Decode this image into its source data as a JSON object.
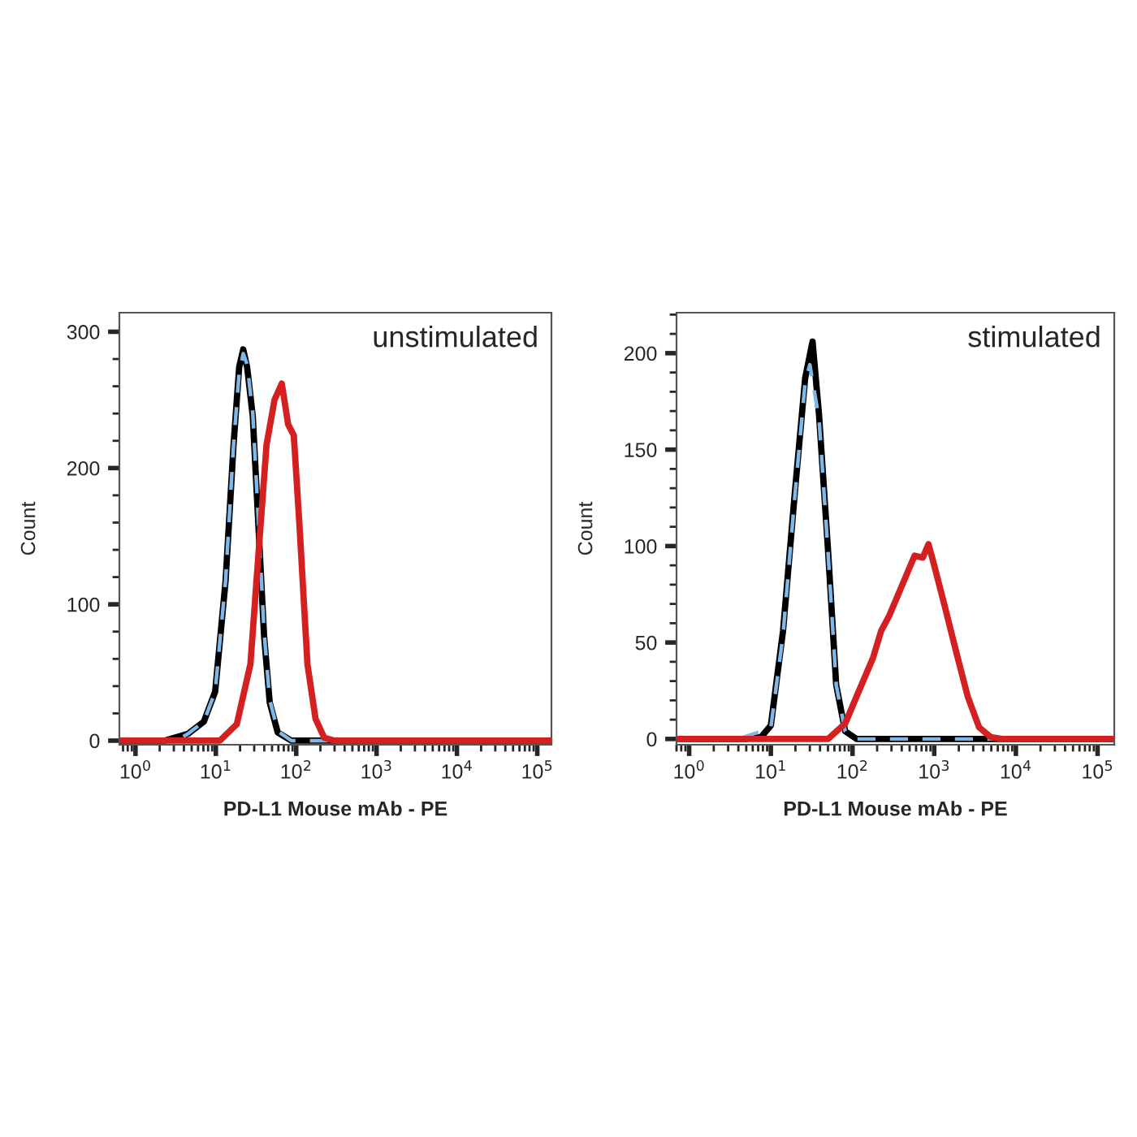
{
  "chart_data": [
    {
      "type": "line",
      "xlabel": "PD-L1 Mouse mAb - PE",
      "ylabel": "Count",
      "annotations": [
        "unstimulated"
      ],
      "log": "x",
      "grid": false,
      "legend": false,
      "xlim": [
        0.63,
        150000
      ],
      "xticks": [
        {
          "value": 1,
          "label": "10$^{0}$"
        },
        {
          "value": 10,
          "label": "10$^{1}$"
        },
        {
          "value": 100,
          "label": "10$^{2}$"
        },
        {
          "value": 1000,
          "label": "10$^{3}$"
        },
        {
          "value": 10000,
          "label": "10$^{4}$"
        },
        {
          "value": 100000,
          "label": "10$^{5}$"
        }
      ],
      "ylim": [
        -3,
        314
      ],
      "yticks": [
        0,
        100,
        200,
        300
      ],
      "series": [
        {
          "color": "#000000",
          "line_style": "solid",
          "x": [
            0.63,
            2.3,
            4.5,
            7.1,
            9.8,
            13.2,
            16.6,
            19.5,
            21.9,
            24.5,
            28.8,
            33.9,
            39.8,
            46.8,
            58.9,
            87.1,
            150000
          ],
          "values": [
            0,
            0,
            5,
            14,
            36,
            117,
            217,
            274,
            287,
            274,
            238,
            157,
            77,
            28,
            6,
            0,
            0
          ]
        },
        {
          "color": "#7fb8e6",
          "line_style": "dashed",
          "x": [
            0.63,
            3.2,
            4.5,
            7.1,
            9.8,
            13.2,
            16.6,
            19.5,
            21.9,
            24.5,
            28.8,
            33.9,
            39.8,
            46.8,
            58.9,
            87.1,
            150000
          ],
          "values": [
            0,
            0,
            5,
            14,
            36,
            117,
            217,
            270,
            284,
            276,
            240,
            160,
            80,
            30,
            7,
            0,
            0
          ]
        },
        {
          "color": "#d42020",
          "line_style": "solid",
          "x": [
            0.63,
            11.2,
            18.2,
            26.9,
            33.9,
            42.7,
            53.7,
            66.1,
            79.4,
            93.3,
            110,
            138,
            174,
            224,
            302,
            150000
          ],
          "values": [
            0,
            0,
            12,
            56,
            137,
            217,
            250,
            262,
            232,
            224,
            157,
            56,
            16,
            2,
            0,
            0
          ]
        }
      ]
    },
    {
      "type": "line",
      "xlabel": "PD-L1 Mouse mAb - PE",
      "ylabel": "Count",
      "annotations": [
        "stimulated"
      ],
      "log": "x",
      "grid": false,
      "legend": false,
      "xlim": [
        0.7,
        160000
      ],
      "xticks": [
        {
          "value": 1,
          "label": "10$^{0}$"
        },
        {
          "value": 10,
          "label": "10$^{1}$"
        },
        {
          "value": 100,
          "label": "10$^{2}$"
        },
        {
          "value": 1000,
          "label": "10$^{3}$"
        },
        {
          "value": 10000,
          "label": "10$^{4}$"
        },
        {
          "value": 100000,
          "label": "10$^{5}$"
        }
      ],
      "ylim": [
        -3,
        221
      ],
      "yticks": [
        0,
        50,
        100,
        150,
        200
      ],
      "series": [
        {
          "color": "#000000",
          "line_style": "solid",
          "x": [
            0.7,
            4.8,
            7.6,
            10,
            14.1,
            19.5,
            26.3,
            32.4,
            38.9,
            50.1,
            63.1,
            81.3,
            112,
            160000
          ],
          "values": [
            0,
            0,
            1,
            7,
            56,
            126,
            187,
            206,
            168,
            98,
            28,
            4,
            0,
            0
          ]
        },
        {
          "color": "#7fb8e6",
          "line_style": "dashed",
          "x": [
            0.7,
            4.0,
            7.6,
            10,
            14.1,
            19.5,
            26.3,
            30.0,
            38.9,
            50.1,
            63.1,
            81.3,
            112,
            160000
          ],
          "values": [
            0,
            0,
            4,
            6,
            54,
            124,
            185,
            194,
            166,
            97,
            28,
            4,
            0,
            0
          ]
        },
        {
          "color": "#d42020",
          "line_style": "solid",
          "x": [
            0.7,
            50.1,
            81.3,
            112,
            178,
            224,
            282,
            417,
            575,
            724,
            851,
            1000,
            1380,
            1862,
            2570,
            3548,
            4898,
            6761,
            160000
          ],
          "values": [
            0,
            0,
            8,
            22,
            42,
            56,
            64,
            81,
            95,
            94,
            101,
            90,
            67,
            45,
            22,
            6,
            1,
            0,
            0
          ]
        }
      ]
    }
  ]
}
